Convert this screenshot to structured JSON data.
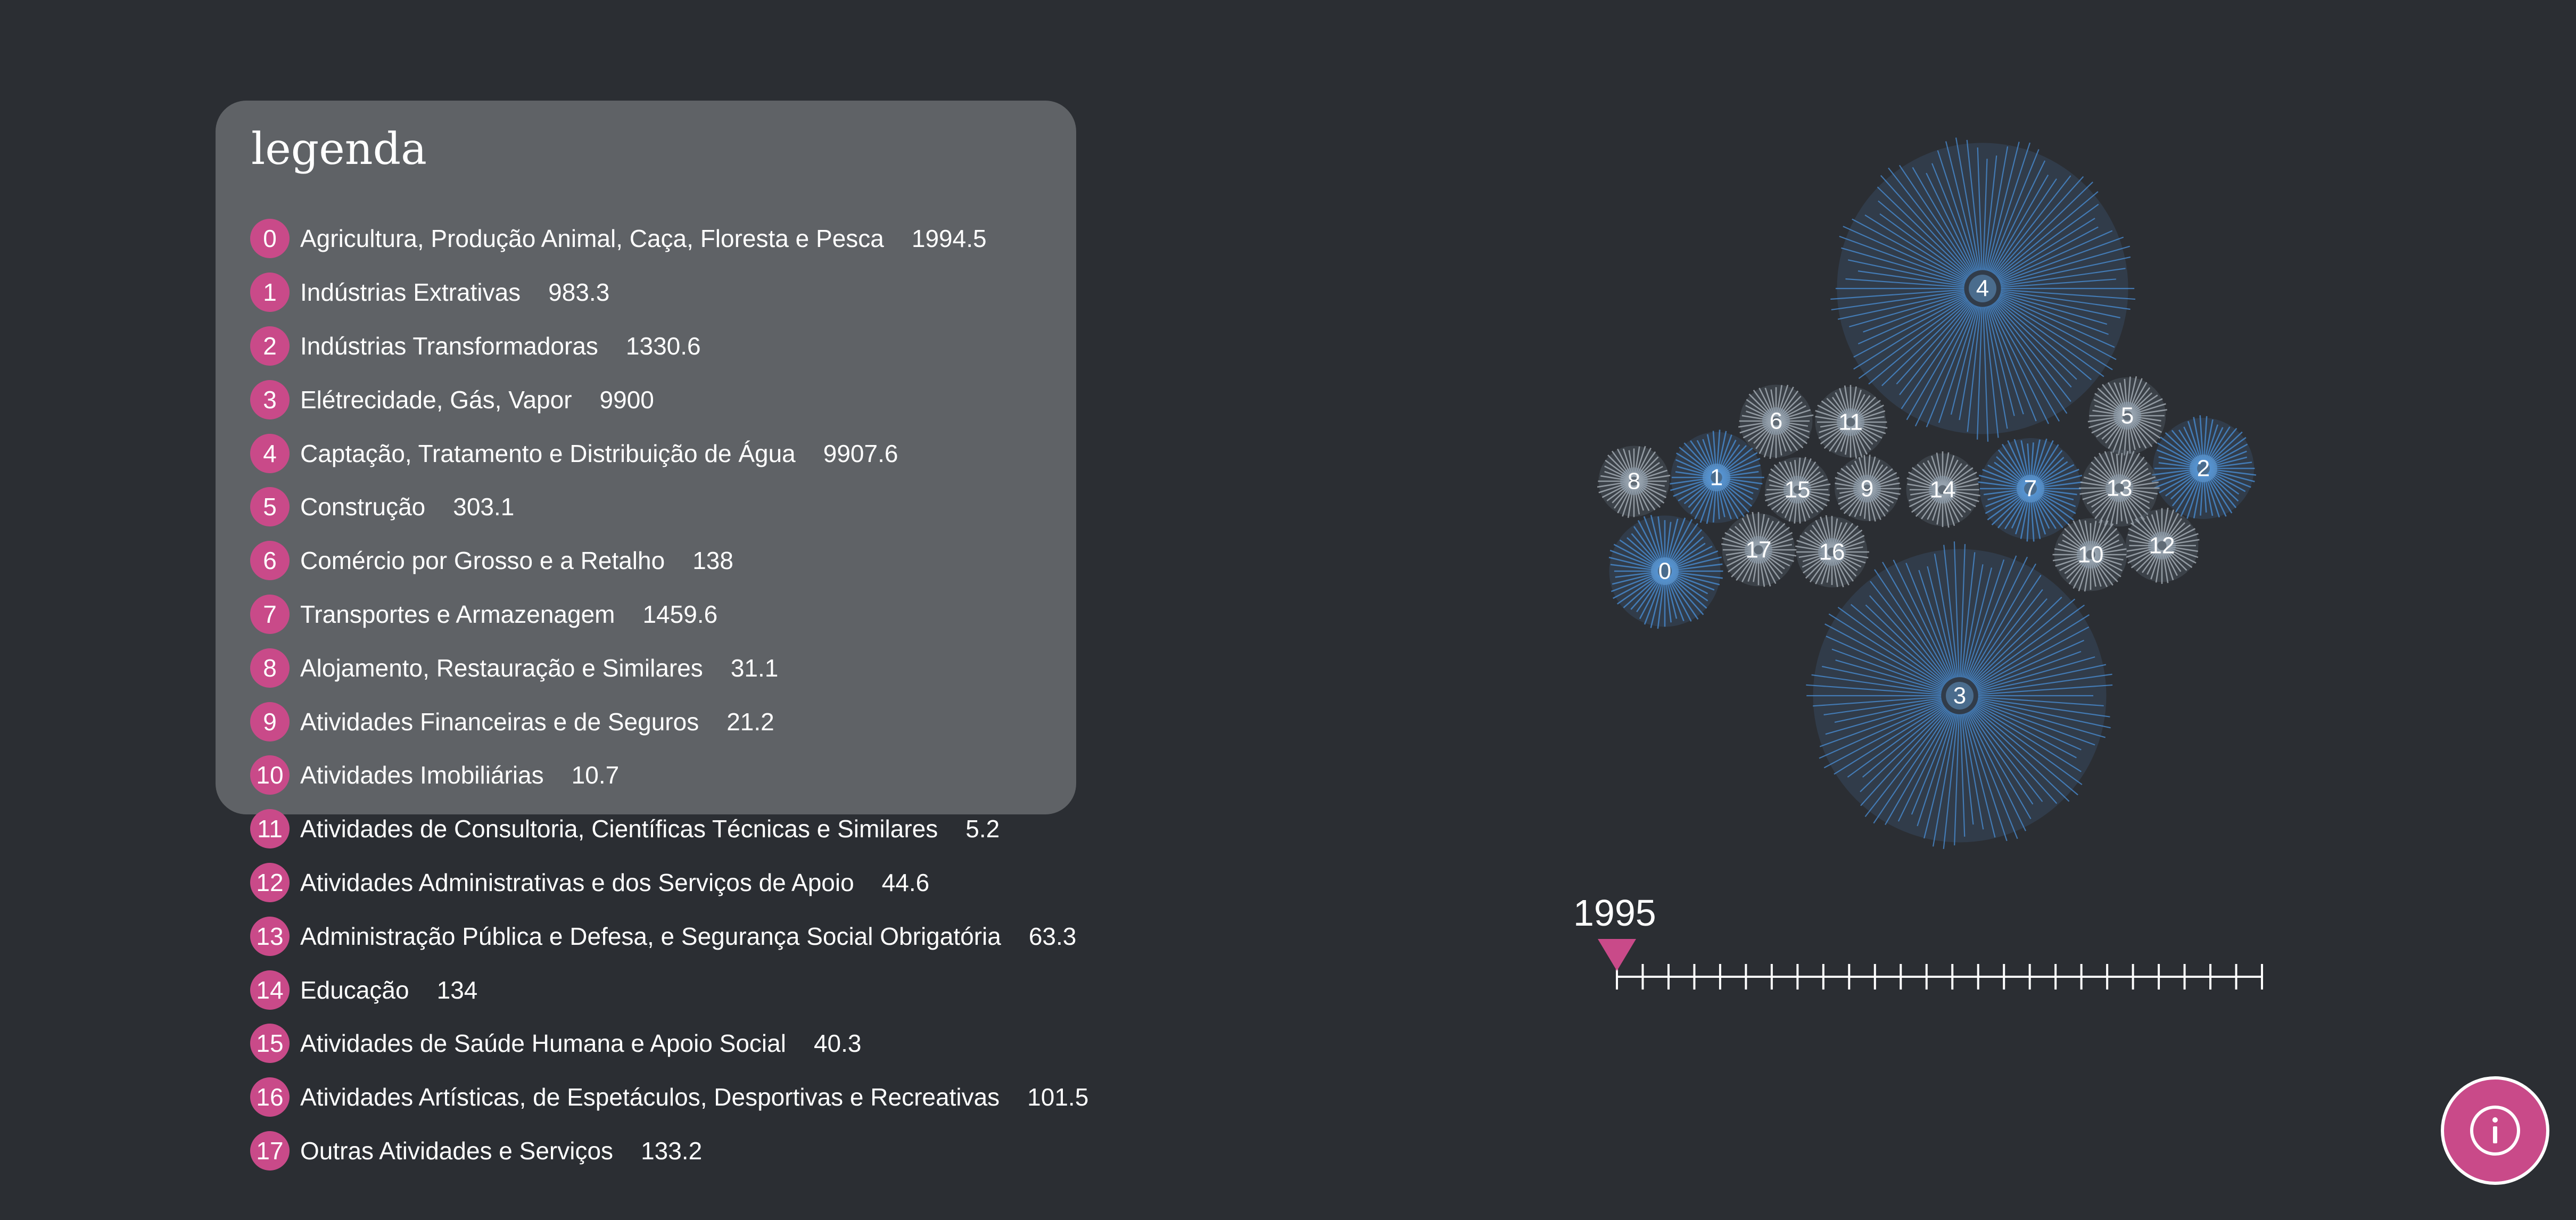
{
  "legend": {
    "title": "legenda",
    "items": [
      {
        "index": "0",
        "label": "Agricultura, Produção Animal, Caça, Floresta e Pesca",
        "value": "1994.5"
      },
      {
        "index": "1",
        "label": "Indústrias Extrativas",
        "value": "983.3"
      },
      {
        "index": "2",
        "label": "Indústrias Transformadoras",
        "value": "1330.6"
      },
      {
        "index": "3",
        "label": "Elétrecidade, Gás, Vapor",
        "value": "9900"
      },
      {
        "index": "4",
        "label": "Captação, Tratamento e Distribuição de Água",
        "value": "9907.6"
      },
      {
        "index": "5",
        "label": "Construção",
        "value": "303.1"
      },
      {
        "index": "6",
        "label": "Comércio por Grosso e a Retalho",
        "value": "138"
      },
      {
        "index": "7",
        "label": "Transportes e Armazenagem",
        "value": "1459.6"
      },
      {
        "index": "8",
        "label": "Alojamento, Restauração e Similares",
        "value": "31.1"
      },
      {
        "index": "9",
        "label": "Atividades Financeiras e de Seguros",
        "value": "21.2"
      },
      {
        "index": "10",
        "label": "Atividades Imobiliárias",
        "value": "10.7"
      },
      {
        "index": "11",
        "label": "Atividades de Consultoria, Científicas Técnicas e Similares",
        "value": "5.2"
      },
      {
        "index": "12",
        "label": "Atividades Administrativas e dos Serviços de Apoio",
        "value": "44.6"
      },
      {
        "index": "13",
        "label": "Administração Pública e Defesa, e Segurança Social Obrigatória",
        "value": "63.3"
      },
      {
        "index": "14",
        "label": "Educação",
        "value": "134"
      },
      {
        "index": "15",
        "label": "Atividades de Saúde Humana e Apoio Social",
        "value": "40.3"
      },
      {
        "index": "16",
        "label": "Atividades Artísticas, de Espetáculos, Desportivas e Recreativas",
        "value": "101.5"
      },
      {
        "index": "17",
        "label": "Outras Atividades e Serviços",
        "value": "133.2"
      }
    ]
  },
  "timeline": {
    "year": "1995",
    "position": 0,
    "tick_count": 26
  },
  "bubbles": [
    "4",
    "6",
    "11",
    "5",
    "2",
    "8",
    "1",
    "15",
    "9",
    "14",
    "7",
    "13",
    "17",
    "16",
    "10",
    "12",
    "0",
    "3"
  ],
  "colors": {
    "background": "#2b2e33",
    "panel": "#5f6266",
    "accent": "#c94a89",
    "bubble_blue": "#4a90d9",
    "bubble_grey": "#b0b8c0",
    "text": "#ffffff"
  },
  "info_button": {
    "icon": "info-icon"
  }
}
